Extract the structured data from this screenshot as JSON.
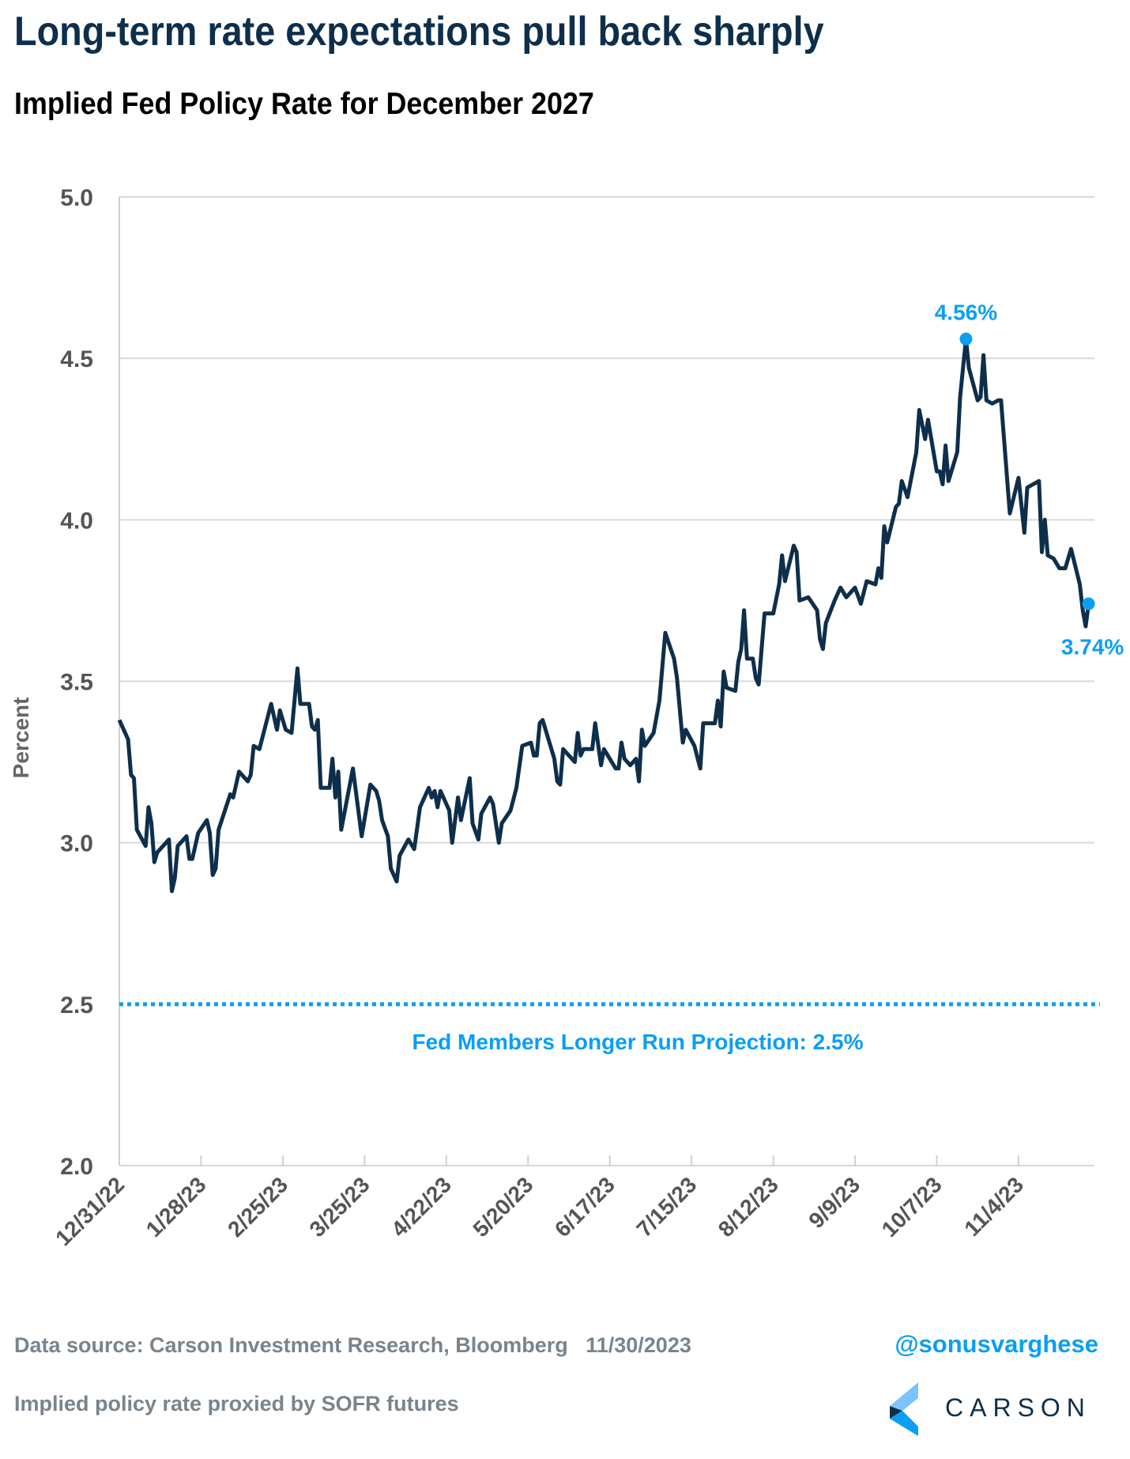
{
  "header": {
    "title": "Long-term rate expectations pull back sharply",
    "subtitle": "Implied Fed Policy Rate for December 2027"
  },
  "chart_data": {
    "type": "line",
    "title": "Implied Fed Policy Rate for December 2027",
    "xlabel": "",
    "ylabel": "Percent",
    "ylim": [
      2.0,
      5.0
    ],
    "xlim": [
      "12/31/22",
      "11/30/23"
    ],
    "y_ticks": [
      "5.0",
      "4.5",
      "4.0",
      "3.5",
      "3.0",
      "2.5",
      "2.0"
    ],
    "x_ticks": [
      "12/31/22",
      "1/28/23",
      "2/25/23",
      "3/25/23",
      "4/22/23",
      "5/20/23",
      "6/17/23",
      "7/15/23",
      "8/12/23",
      "9/9/23",
      "10/7/23",
      "11/4/23"
    ],
    "grid": "horizontal",
    "colors": {
      "series": "#0e2f4b",
      "highlight": "#0a9ef5",
      "grid": "#d9d9d9"
    },
    "series": [
      {
        "x": [
          "12/31/22",
          "1/3/23",
          "1/4/23",
          "1/5/23",
          "1/6/23",
          "1/9/23",
          "1/10/23",
          "1/11/23",
          "1/12/23",
          "1/13/23",
          "1/17/23",
          "1/18/23",
          "1/19/23",
          "1/20/23",
          "1/23/23",
          "1/24/23",
          "1/25/23",
          "1/27/23",
          "1/30/23",
          "1/31/23",
          "2/1/23",
          "2/2/23",
          "2/3/23",
          "2/7/23",
          "2/8/23",
          "2/10/23",
          "2/13/23",
          "2/14/23",
          "2/15/23",
          "2/17/23",
          "2/21/23",
          "2/23/23",
          "2/24/23",
          "2/26/23",
          "2/28/23",
          "3/2/23",
          "3/3/23",
          "3/6/23",
          "3/7/23",
          "3/8/23",
          "3/9/23",
          "3/10/23",
          "3/13/23",
          "3/14/23",
          "3/15/23",
          "3/16/23",
          "3/17/23",
          "3/21/23",
          "3/24/23",
          "3/27/23",
          "3/29/23",
          "3/30/23",
          "3/31/23",
          "4/2/23",
          "4/3/23",
          "4/5/23",
          "4/6/23",
          "4/9/23",
          "4/11/23",
          "4/13/23",
          "4/16/23",
          "4/17/23",
          "4/18/23",
          "4/19/23",
          "4/20/23",
          "4/23/23",
          "4/24/23",
          "4/26/23",
          "4/27/23",
          "4/30/23",
          "5/1/23",
          "5/3/23",
          "5/4/23",
          "5/7/23",
          "5/8/23",
          "5/9/23",
          "5/10/23",
          "5/11/23",
          "5/14/23",
          "5/16/23",
          "5/18/23",
          "5/21/23",
          "5/22/23",
          "5/23/23",
          "5/24/23",
          "5/25/23",
          "5/29/23",
          "5/30/23",
          "5/31/23",
          "6/1/23",
          "6/5/23",
          "6/6/23",
          "6/7/23",
          "6/8/23",
          "6/11/23",
          "6/12/23",
          "6/14/23",
          "6/15/23",
          "6/19/23",
          "6/20/23",
          "6/21/23",
          "6/22/23",
          "6/24/23",
          "6/26/23",
          "6/27/23",
          "6/28/23",
          "6/29/23",
          "7/2/23",
          "7/4/23",
          "7/6/23",
          "7/9/23",
          "7/10/23",
          "7/12/23",
          "7/13/23",
          "7/16/23",
          "7/18/23",
          "7/19/23",
          "7/23/23",
          "7/24/23",
          "7/25/23",
          "7/26/23",
          "7/27/23",
          "7/30/23",
          "7/31/23",
          "8/1/23",
          "8/2/23",
          "8/3/23",
          "8/5/23",
          "8/6/23",
          "8/7/23",
          "8/9/23",
          "8/12/23",
          "8/14/23",
          "8/15/23",
          "8/16/23",
          "8/19/23",
          "8/20/23",
          "8/21/23",
          "8/24/23",
          "8/27/23",
          "8/28/23",
          "8/29/23",
          "8/30/23",
          "9/2/23",
          "9/4/23",
          "9/6/23",
          "9/9/23",
          "9/11/23",
          "9/13/23",
          "9/16/23",
          "9/17/23",
          "9/18/23",
          "9/19/23",
          "9/20/23",
          "9/23/23",
          "9/24/23",
          "9/25/23",
          "9/27/23",
          "9/30/23",
          "10/1/23",
          "10/3/23",
          "10/4/23",
          "10/7/23",
          "10/8/23",
          "10/9/23",
          "10/10/23",
          "10/11/23",
          "10/14/23",
          "10/15/23",
          "10/17/23",
          "10/18/23",
          "10/21/23",
          "10/22/23",
          "10/23/23",
          "10/24/23",
          "10/26/23",
          "10/28/23",
          "10/29/23",
          "11/1/23",
          "11/4/23",
          "11/6/23",
          "11/7/23",
          "11/11/23",
          "11/12/23",
          "11/13/23",
          "11/14/23",
          "11/16/23",
          "11/18/23",
          "11/20/23",
          "11/22/23",
          "11/25/23",
          "11/26/23",
          "11/27/23",
          "11/28/23"
        ],
        "y": [
          3.38,
          3.32,
          3.21,
          3.2,
          3.04,
          2.99,
          3.11,
          3.06,
          2.94,
          2.97,
          3.01,
          2.85,
          2.89,
          2.99,
          3.02,
          2.95,
          2.95,
          3.03,
          3.07,
          3.03,
          2.9,
          2.92,
          3.04,
          3.15,
          3.14,
          3.22,
          3.19,
          3.21,
          3.3,
          3.29,
          3.43,
          3.35,
          3.41,
          3.35,
          3.34,
          3.54,
          3.43,
          3.43,
          3.36,
          3.35,
          3.38,
          3.17,
          3.17,
          3.26,
          3.14,
          3.22,
          3.04,
          3.23,
          3.02,
          3.18,
          3.16,
          3.13,
          3.07,
          3.02,
          2.92,
          2.88,
          2.96,
          3.01,
          2.98,
          3.11,
          3.17,
          3.14,
          3.16,
          3.11,
          3.16,
          3.1,
          3.0,
          3.14,
          3.07,
          3.2,
          3.06,
          3.01,
          3.09,
          3.14,
          3.12,
          3.06,
          3.0,
          3.06,
          3.1,
          3.17,
          3.3,
          3.31,
          3.27,
          3.27,
          3.37,
          3.38,
          3.26,
          3.19,
          3.18,
          3.29,
          3.25,
          3.34,
          3.27,
          3.29,
          3.29,
          3.37,
          3.24,
          3.29,
          3.23,
          3.23,
          3.31,
          3.26,
          3.24,
          3.26,
          3.19,
          3.35,
          3.3,
          3.34,
          3.44,
          3.65,
          3.57,
          3.51,
          3.31,
          3.35,
          3.3,
          3.23,
          3.37,
          3.37,
          3.44,
          3.36,
          3.53,
          3.48,
          3.47,
          3.56,
          3.6,
          3.72,
          3.57,
          3.57,
          3.51,
          3.49,
          3.71,
          3.71,
          3.8,
          3.89,
          3.81,
          3.92,
          3.9,
          3.75,
          3.76,
          3.72,
          3.63,
          3.6,
          3.68,
          3.75,
          3.79,
          3.76,
          3.79,
          3.74,
          3.81,
          3.8,
          3.85,
          3.82,
          3.98,
          3.93,
          4.04,
          4.05,
          4.12,
          4.07,
          4.21,
          4.34,
          4.25,
          4.31,
          4.15,
          4.15,
          4.11,
          4.23,
          4.12,
          4.21,
          4.38,
          4.56,
          4.47,
          4.37,
          4.38,
          4.51,
          4.37,
          4.36,
          4.37,
          4.37,
          4.02,
          4.13,
          3.96,
          4.1,
          4.12,
          3.9,
          4.0,
          3.89,
          3.88,
          3.85,
          3.85,
          3.91,
          3.8,
          3.72,
          3.67,
          3.74
        ]
      }
    ],
    "annotations": [
      {
        "label": "4.56%",
        "x": "10/17/23",
        "y": 4.56
      },
      {
        "label": "3.74%",
        "x": "11/28/23",
        "y": 3.74
      }
    ],
    "reference_line": {
      "y": 2.5,
      "label": "Fed Members Longer Run Projection: 2.5%",
      "style": "dotted"
    }
  },
  "footer": {
    "source": "Data source: Carson Investment Research, Bloomberg   11/30/2023",
    "note": "Implied policy rate proxied by SOFR futures",
    "handle": "@sonusvarghese",
    "logo_text": "CARSON"
  }
}
